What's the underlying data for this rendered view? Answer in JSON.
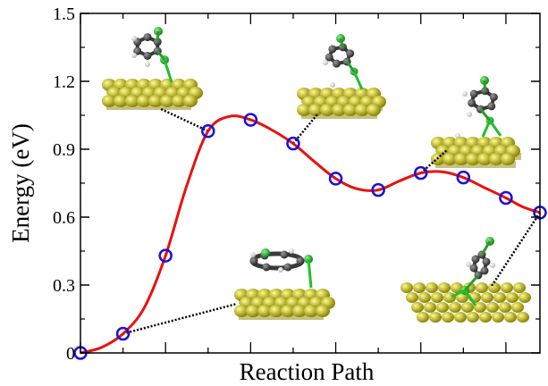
{
  "chart_data": {
    "type": "line",
    "title": "",
    "xlabel": "Reaction Path",
    "ylabel": "Energy (eV)",
    "xlim": [
      0,
      10.8
    ],
    "ylim": [
      0,
      1.5
    ],
    "y_ticks": [
      0,
      0.3,
      0.6,
      0.9,
      1.2,
      1.5
    ],
    "y_tick_labels": [
      "0",
      "0.3",
      "0.6",
      "0.9",
      "1.2",
      "1.5"
    ],
    "x_tick_labels_shown": false,
    "grid": false,
    "legend": "none",
    "series": [
      {
        "marker": "open-circle",
        "marker_color": "#1a10d8",
        "points": [
          [
            0.0,
            0.0
          ],
          [
            1.0,
            0.085
          ],
          [
            2.0,
            0.43
          ],
          [
            3.0,
            0.98
          ],
          [
            4.0,
            1.03
          ],
          [
            5.0,
            0.925
          ],
          [
            6.0,
            0.77
          ],
          [
            7.0,
            0.72
          ],
          [
            8.0,
            0.795
          ],
          [
            9.0,
            0.775
          ],
          [
            10.0,
            0.685
          ],
          [
            10.8,
            0.62
          ]
        ]
      },
      {
        "style": "smooth-curve",
        "line_color": "#e8120c",
        "points": [
          [
            0.0,
            0.0
          ],
          [
            0.5,
            0.025
          ],
          [
            1.0,
            0.085
          ],
          [
            1.5,
            0.2
          ],
          [
            2.0,
            0.43
          ],
          [
            2.5,
            0.74
          ],
          [
            3.0,
            0.98
          ],
          [
            3.5,
            1.045
          ],
          [
            4.0,
            1.03
          ],
          [
            4.5,
            0.985
          ],
          [
            5.0,
            0.925
          ],
          [
            5.5,
            0.845
          ],
          [
            6.0,
            0.77
          ],
          [
            6.5,
            0.725
          ],
          [
            7.0,
            0.72
          ],
          [
            7.5,
            0.76
          ],
          [
            8.0,
            0.795
          ],
          [
            8.5,
            0.8
          ],
          [
            9.0,
            0.775
          ],
          [
            9.5,
            0.73
          ],
          [
            10.0,
            0.685
          ],
          [
            10.4,
            0.645
          ],
          [
            10.8,
            0.62
          ]
        ]
      }
    ],
    "insets": [
      {
        "name": "molecule-inset-1",
        "anchor": [
          3.0,
          0.98
        ]
      },
      {
        "name": "molecule-inset-2",
        "anchor": [
          5.0,
          0.925
        ]
      },
      {
        "name": "molecule-inset-3",
        "anchor": [
          8.0,
          0.795
        ]
      },
      {
        "name": "molecule-inset-4",
        "anchor": [
          1.0,
          0.085
        ]
      },
      {
        "name": "molecule-inset-5",
        "anchor": [
          10.8,
          0.62
        ]
      }
    ]
  },
  "colors": {
    "curve": "#e8120c",
    "marker": "#1a10d8",
    "leader": "#000000",
    "surface": "#e5d800",
    "surface_dark": "#8b8400",
    "carbon": "#4a4a4a",
    "chlorine": "#21c02a",
    "hydrogen": "#eeeeee"
  }
}
